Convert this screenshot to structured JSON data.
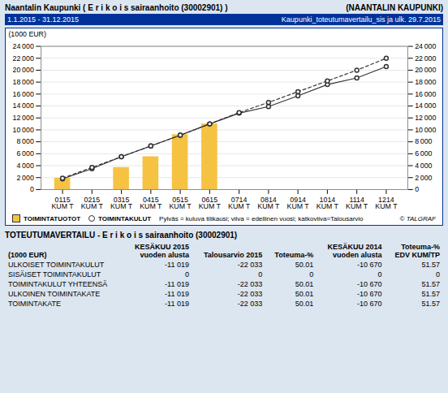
{
  "chart_data": {
    "type": "bar",
    "title": "Naantalin Kaupunki ( E r i k o i s sairaanhoito (30002901) )",
    "title_right": "(NAANTALIN KAUPUNKI)",
    "subtitle": "1.1.2015 - 31.12.2015",
    "subtitle_right": "Kaupunki_toteutumavertailu_sis ja ulk. 29.7.2015",
    "ylabel": "(1000 EUR)",
    "categories": [
      "0115\nKUM T",
      "0215\nKUM T",
      "0315\nKUM T",
      "0415\nKUM T",
      "0515\nKUM T",
      "0615\nKUM T",
      "0714\nKUM T",
      "0814\nKUM T",
      "0914\nKUM T",
      "1014\nKUM T",
      "1114\nKUM T",
      "1214\nKUM T"
    ],
    "series": [
      {
        "name": "TOIMINTATUOTOT",
        "type": "bar",
        "color": "#f5c242",
        "values": [
          1900,
          0,
          3700,
          5500,
          9200,
          11000,
          0,
          0,
          0,
          0,
          0,
          0
        ]
      },
      {
        "name": "TOIMINTAKULUT",
        "type": "line",
        "color": "#333333",
        "marker": "circle",
        "line_style": "solid",
        "values": [
          1800,
          3500,
          5500,
          7300,
          9100,
          11000,
          12800,
          13900,
          15700,
          17600,
          18700,
          20600
        ]
      },
      {
        "name": "TOIMINTAKULUT",
        "type": "line",
        "color": "#333333",
        "marker": "circle",
        "line_style": "dashed",
        "values": [
          1900,
          3700,
          5500,
          7300,
          9100,
          11000,
          12900,
          14600,
          16400,
          18200,
          20000,
          22000
        ]
      }
    ],
    "ylim": [
      0,
      24000
    ],
    "yticks": [
      0,
      {
        "value": 2000,
        "label": "2 000"
      },
      {
        "value": 4000,
        "label": "4 000"
      },
      {
        "value": 6000,
        "label": "6 000"
      },
      {
        "value": 8000,
        "label": "8 000"
      },
      {
        "value": 10000,
        "label": "10 000"
      },
      {
        "value": 12000,
        "label": "12 000"
      },
      {
        "value": 14000,
        "label": "14 000"
      },
      {
        "value": 16000,
        "label": "16 000"
      },
      {
        "value": 18000,
        "label": "18 000"
      },
      {
        "value": 20000,
        "label": "20 000"
      },
      {
        "value": 22000,
        "label": "22 000"
      },
      {
        "value": 24000,
        "label": "24 000"
      }
    ],
    "grid": true,
    "legend": "bottom",
    "annotations": [
      "Pylväs = kuluva tilikausi; viiva = edellinen vuosi; katkoviiva=Talousarvio",
      "© TALGRAF"
    ],
    "table": {
      "title": "TOTEUTUMAVERTAILU - E r i k o i s sairaanhoito (30002901)",
      "unit": "(1000 EUR)",
      "col_headers": [
        "KESÄKUU 2015\nvuoden alusta",
        "Talousarvio 2015",
        "Toteuma-%",
        "KESÄKUU 2014\nvuoden alusta",
        "Toteuma-%\nEDV KUM/TP"
      ],
      "rows": [
        {
          "label": "ULKOISET TOIMINTAKULUT",
          "vals": [
            "-11 019",
            "-22 033",
            "50.01",
            "-10 670",
            "51.57"
          ]
        },
        {
          "label": "SISÄISET TOIMINTAKULUT",
          "vals": [
            "0",
            "0",
            "0",
            "0",
            "0"
          ]
        },
        {
          "label": "TOIMINTAKULUT YHTEENSÄ",
          "vals": [
            "-11 019",
            "-22 033",
            "50.01",
            "-10 670",
            "51.57"
          ]
        },
        {
          "label": "ULKOINEN TOIMINTAKATE",
          "vals": [
            "-11 019",
            "-22 033",
            "50.01",
            "-10 670",
            "51.57"
          ]
        },
        {
          "label": "TOIMINTAKATE",
          "vals": [
            "-11 019",
            "-22 033",
            "50.01",
            "-10 670",
            "51.57"
          ]
        }
      ]
    }
  }
}
